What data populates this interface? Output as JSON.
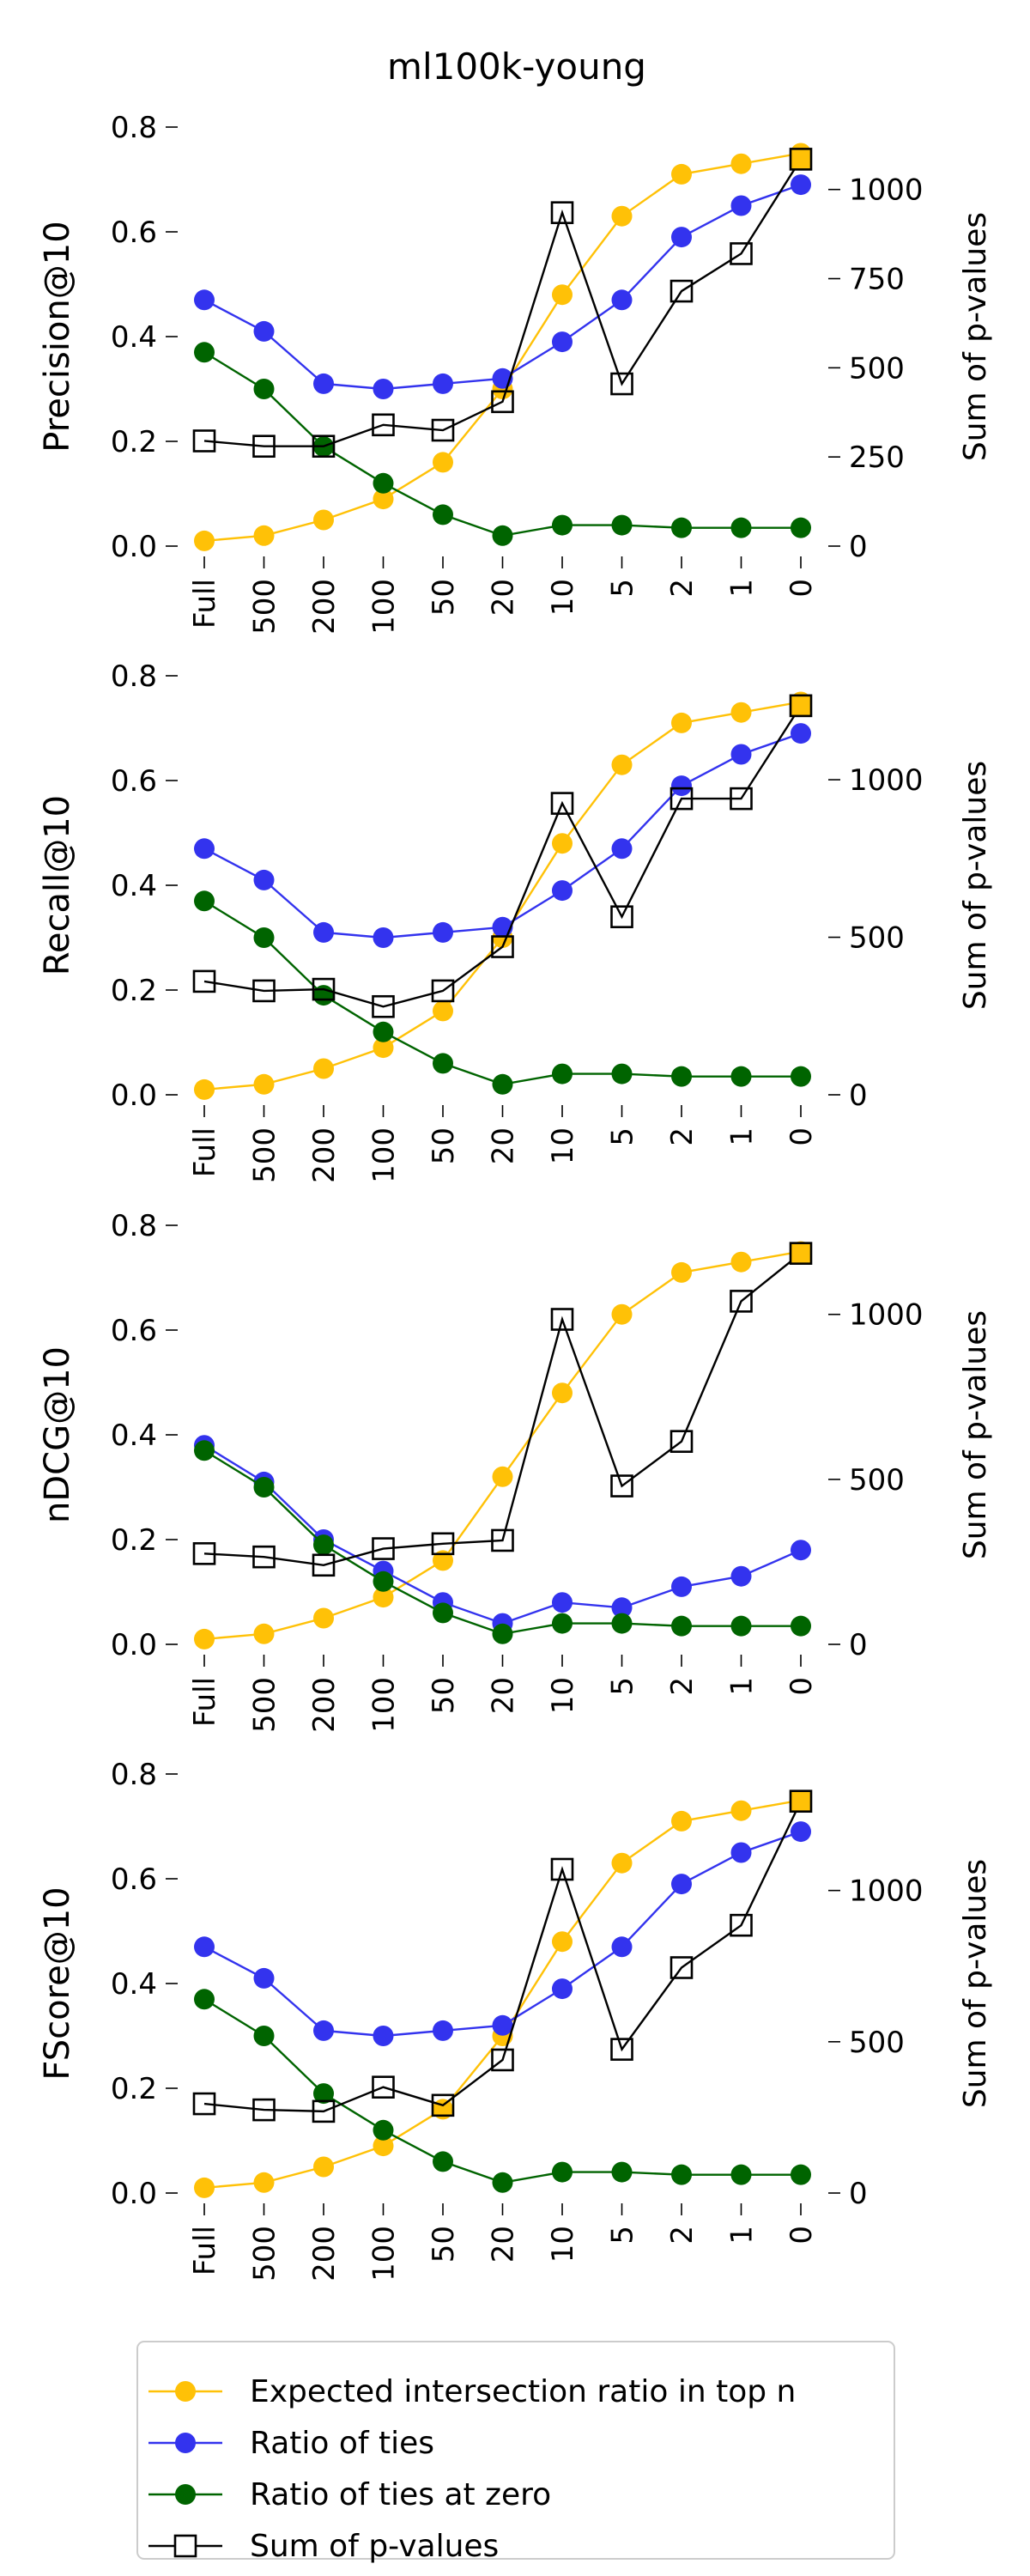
{
  "title": "ml100k-young",
  "colors": {
    "expected": "#FFC107",
    "ties": "#3333EE",
    "ties_zero": "#006400",
    "pvalues": "#000000",
    "pvalues_last_fill": "#FFC107"
  },
  "chart_data": [
    {
      "type": "line",
      "categories": [
        "Full",
        "500",
        "200",
        "100",
        "50",
        "20",
        "10",
        "5",
        "2",
        "1",
        "0"
      ],
      "ylabel": "Precision@10",
      "ylabel_right": "Sum of p-values",
      "ylim": [
        0,
        0.8
      ],
      "yticks": [
        0.0,
        0.2,
        0.4,
        0.6,
        0.8
      ],
      "ytick_labels": [
        "0.0",
        "0.2",
        "0.4",
        "0.6",
        "0.8"
      ],
      "ylim_right": [
        0,
        1175
      ],
      "yticks_right": [
        0,
        250,
        500,
        750,
        1000
      ],
      "series": [
        {
          "name": "Expected intersection ratio in top n",
          "color_key": "expected",
          "values": [
            0.01,
            0.02,
            0.05,
            0.09,
            0.16,
            0.3,
            0.48,
            0.63,
            0.71,
            0.73,
            0.75
          ]
        },
        {
          "name": "Ratio of ties",
          "color_key": "ties",
          "values": [
            0.47,
            0.41,
            0.31,
            0.3,
            0.31,
            0.32,
            0.39,
            0.47,
            0.59,
            0.65,
            0.69
          ]
        },
        {
          "name": "Ratio of ties at zero",
          "color_key": "ties_zero",
          "values": [
            0.37,
            0.3,
            0.19,
            0.12,
            0.06,
            0.02,
            0.04,
            0.04,
            0.035,
            0.035,
            0.035
          ]
        }
      ],
      "series_right": {
        "name": "Sum of p-values",
        "values": [
          295,
          280,
          280,
          340,
          325,
          405,
          935,
          455,
          715,
          820,
          1085
        ]
      }
    },
    {
      "type": "line",
      "categories": [
        "Full",
        "500",
        "200",
        "100",
        "50",
        "20",
        "10",
        "5",
        "2",
        "1",
        "0"
      ],
      "ylabel": "Recall@10",
      "ylabel_right": "Sum of p-values",
      "ylim": [
        0,
        0.8
      ],
      "yticks": [
        0.0,
        0.2,
        0.4,
        0.6,
        0.8
      ],
      "ytick_labels": [
        "0.0",
        "0.2",
        "0.4",
        "0.6",
        "0.8"
      ],
      "ylim_right": [
        0,
        1330
      ],
      "yticks_right": [
        0,
        500,
        1000
      ],
      "series": [
        {
          "name": "Expected intersection ratio in top n",
          "color_key": "expected",
          "values": [
            0.01,
            0.02,
            0.05,
            0.09,
            0.16,
            0.3,
            0.48,
            0.63,
            0.71,
            0.73,
            0.75
          ]
        },
        {
          "name": "Ratio of ties",
          "color_key": "ties",
          "values": [
            0.47,
            0.41,
            0.31,
            0.3,
            0.31,
            0.32,
            0.39,
            0.47,
            0.59,
            0.65,
            0.69
          ]
        },
        {
          "name": "Ratio of ties at zero",
          "color_key": "ties_zero",
          "values": [
            0.37,
            0.3,
            0.19,
            0.12,
            0.06,
            0.02,
            0.04,
            0.04,
            0.035,
            0.035,
            0.035
          ]
        }
      ],
      "series_right": {
        "name": "Sum of p-values",
        "values": [
          360,
          330,
          335,
          280,
          330,
          470,
          925,
          565,
          940,
          940,
          1235
        ]
      }
    },
    {
      "type": "line",
      "categories": [
        "Full",
        "500",
        "200",
        "100",
        "50",
        "20",
        "10",
        "5",
        "2",
        "1",
        "0"
      ],
      "ylabel": "nDCG@10",
      "ylabel_right": "Sum of p-values",
      "ylim": [
        0,
        0.8
      ],
      "yticks": [
        0.0,
        0.2,
        0.4,
        0.6,
        0.8
      ],
      "ytick_labels": [
        "0.0",
        "0.2",
        "0.4",
        "0.6",
        "0.8"
      ],
      "ylim_right": [
        0,
        1270
      ],
      "yticks_right": [
        0,
        500,
        1000
      ],
      "series": [
        {
          "name": "Expected intersection ratio in top n",
          "color_key": "expected",
          "values": [
            0.01,
            0.02,
            0.05,
            0.09,
            0.16,
            0.32,
            0.48,
            0.63,
            0.71,
            0.73,
            0.75
          ]
        },
        {
          "name": "Ratio of ties",
          "color_key": "ties",
          "values": [
            0.38,
            0.31,
            0.2,
            0.14,
            0.08,
            0.04,
            0.08,
            0.07,
            0.11,
            0.13,
            0.18
          ]
        },
        {
          "name": "Ratio of ties at zero",
          "color_key": "ties_zero",
          "values": [
            0.37,
            0.3,
            0.19,
            0.12,
            0.06,
            0.02,
            0.04,
            0.04,
            0.035,
            0.035,
            0.035
          ]
        }
      ],
      "series_right": {
        "name": "Sum of p-values",
        "values": [
          275,
          265,
          240,
          290,
          305,
          315,
          985,
          480,
          615,
          1040,
          1185
        ]
      }
    },
    {
      "type": "line",
      "categories": [
        "Full",
        "500",
        "200",
        "100",
        "50",
        "20",
        "10",
        "5",
        "2",
        "1",
        "0"
      ],
      "ylabel": "FScore@10",
      "ylabel_right": "Sum of p-values",
      "ylim": [
        0,
        0.8
      ],
      "yticks": [
        0.0,
        0.2,
        0.4,
        0.6,
        0.8
      ],
      "ytick_labels": [
        "0.0",
        "0.2",
        "0.4",
        "0.6",
        "0.8"
      ],
      "ylim_right": [
        0,
        1385
      ],
      "yticks_right": [
        0,
        500,
        1000
      ],
      "series": [
        {
          "name": "Expected intersection ratio in top n",
          "color_key": "expected",
          "values": [
            0.01,
            0.02,
            0.05,
            0.09,
            0.16,
            0.3,
            0.48,
            0.63,
            0.71,
            0.73,
            0.75
          ]
        },
        {
          "name": "Ratio of ties",
          "color_key": "ties",
          "values": [
            0.47,
            0.41,
            0.31,
            0.3,
            0.31,
            0.32,
            0.39,
            0.47,
            0.59,
            0.65,
            0.69
          ]
        },
        {
          "name": "Ratio of ties at zero",
          "color_key": "ties_zero",
          "values": [
            0.37,
            0.3,
            0.19,
            0.12,
            0.06,
            0.02,
            0.04,
            0.04,
            0.035,
            0.035,
            0.035
          ]
        }
      ],
      "series_right": {
        "name": "Sum of p-values",
        "values": [
          295,
          275,
          270,
          350,
          290,
          440,
          1070,
          475,
          745,
          885,
          1295
        ]
      }
    }
  ],
  "legend": {
    "entries": [
      {
        "label": "Expected intersection ratio in top n",
        "color_key": "expected",
        "marker": "circle"
      },
      {
        "label": "Ratio of ties",
        "color_key": "ties",
        "marker": "circle"
      },
      {
        "label": "Ratio of ties at zero",
        "color_key": "ties_zero",
        "marker": "circle"
      },
      {
        "label": "Sum of p-values",
        "color_key": "pvalues",
        "marker": "square"
      }
    ]
  }
}
